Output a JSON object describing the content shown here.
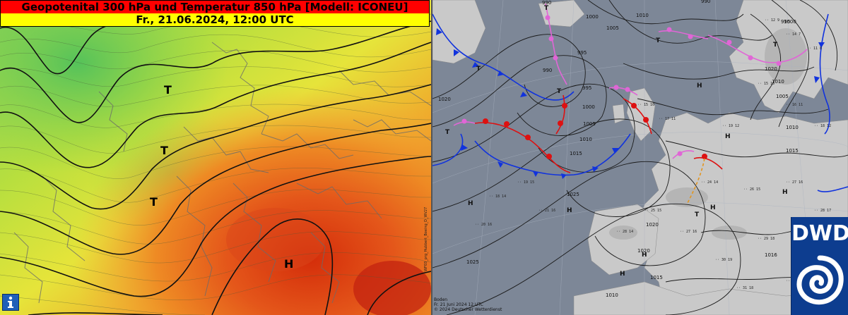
{
  "left_panel": {
    "title_line1": "Geopotenital 300 hPa und Temperatur 850 hPa [Modell: ICONEU]",
    "title_line2": "Fr., 21.06.2024, 12:00 UTC",
    "title_colors": {
      "line1_bg": "#ff0000",
      "line2_bg": "#ffff00"
    },
    "pressure_systems": [
      {
        "label": "T"
      },
      {
        "label": "T"
      },
      {
        "label": "T"
      },
      {
        "label": "H"
      }
    ],
    "info_icon": "info-icon",
    "side_label": "WF03_prg_Hubbert_Boeing_D_WV27"
  },
  "right_panel": {
    "isobar_labels": [
      "990",
      "1000",
      "1010",
      "1005",
      "995",
      "990",
      "1000",
      "1005",
      "1010",
      "1015",
      "1020",
      "1025",
      "1025",
      "995",
      "1000",
      "1005",
      "1010",
      "1015",
      "1020",
      "1020",
      "1015",
      "1010",
      "1016",
      "1010",
      "990",
      "995",
      "1020"
    ],
    "pressure_centers": [
      {
        "label": "T"
      },
      {
        "label": "T"
      },
      {
        "label": "T"
      },
      {
        "label": "T"
      },
      {
        "label": "T"
      },
      {
        "label": "T"
      },
      {
        "label": "T"
      },
      {
        "label": "H"
      },
      {
        "label": "H"
      },
      {
        "label": "H"
      },
      {
        "label": "H"
      },
      {
        "label": "H"
      },
      {
        "label": "H"
      },
      {
        "label": "H"
      },
      {
        "label": "H"
      }
    ],
    "footer": {
      "line1": "Boden",
      "line2": "Fr. 21 Juni 2024 12 UTC",
      "line3": "© 2024 Deutscher Wetterdienst"
    }
  },
  "logo": {
    "text": "DWD",
    "bg_color": "#0d3d8f"
  }
}
